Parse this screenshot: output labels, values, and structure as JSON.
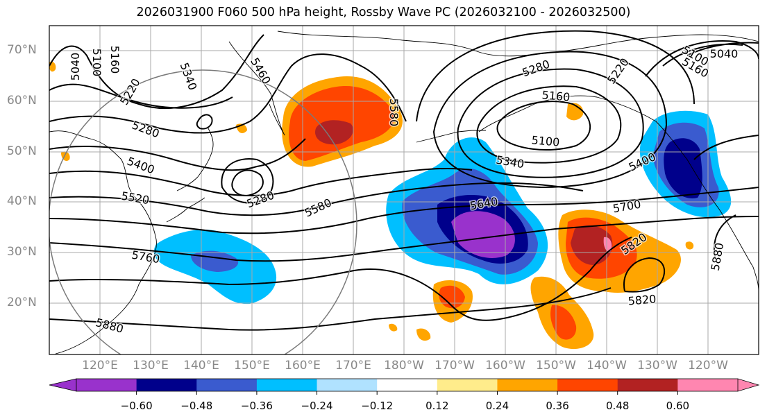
{
  "title": "2026031900 F060 500 hPa height, Rossby Wave PC (2026032100 - 2026032500)",
  "lat_labels": [
    "70°N",
    "60°N",
    "50°N",
    "40°N",
    "30°N",
    "20°N"
  ],
  "lon_labels": [
    "120°E",
    "130°E",
    "140°E",
    "150°E",
    "160°E",
    "170°E",
    "180°W",
    "170°W",
    "160°W",
    "150°W",
    "140°W",
    "130°W",
    "120°W"
  ],
  "colorbar": {
    "colors": [
      "#9932cc",
      "#00008b",
      "#3a5bcf",
      "#00bfff",
      "#b0e2ff",
      "#ffffff",
      "#ffec8b",
      "#ffa500",
      "#ff4500",
      "#b22222",
      "#ff86b0"
    ],
    "tick_labels": [
      "−0.60",
      "−0.48",
      "−0.36",
      "−0.24",
      "−0.12",
      "0.12",
      "0.24",
      "0.36",
      "0.48",
      "0.60"
    ]
  },
  "contour_labels": [
    "5040",
    "5100",
    "5160",
    "5220",
    "5340",
    "5460",
    "5580",
    "5280",
    "5400",
    "5520",
    "5280",
    "5580",
    "5760",
    "5880",
    "5280",
    "5160",
    "5100",
    "5340",
    "5640",
    "5700",
    "5220",
    "5160",
    "5100",
    "5040",
    "5400",
    "5820",
    "5820",
    "5880"
  ],
  "shading": {
    "negative_colors": [
      "#00bfff",
      "#3a5bcf",
      "#00008b",
      "#9932cc"
    ],
    "positive_colors": [
      "#ffa500",
      "#ff4500",
      "#b22222",
      "#ff86b0"
    ]
  }
}
